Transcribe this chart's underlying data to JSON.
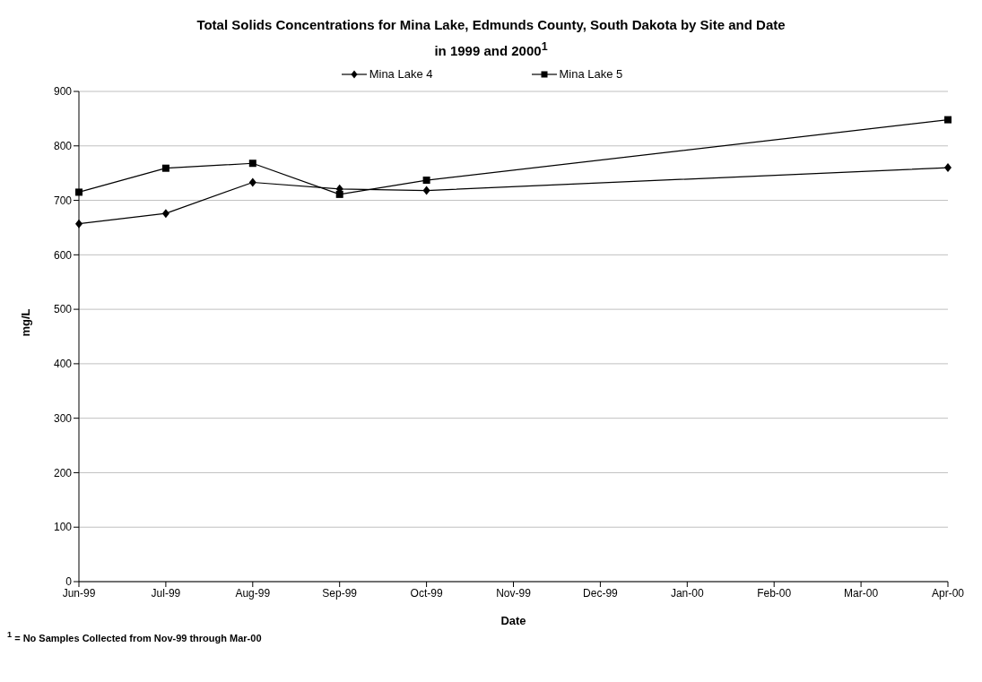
{
  "chart_data": {
    "type": "line",
    "title": "Total Solids Concentrations for Mina Lake, Edmunds County, South Dakota by Site and Date\nin 1999 and 2000$^{1}$",
    "xlabel": "Date",
    "ylabel": "mg/L",
    "categories": [
      "Jun-99",
      "Jul-99",
      "Aug-99",
      "Sep-99",
      "Oct-99",
      "Nov-99",
      "Dec-99",
      "Jan-00",
      "Feb-00",
      "Mar-00",
      "Apr-00"
    ],
    "series": [
      {
        "name": "Mina Lake 4",
        "color": "#000000",
        "marker": "diamond",
        "values": [
          657,
          676,
          733,
          721,
          718,
          null,
          null,
          null,
          null,
          null,
          760
        ]
      },
      {
        "name": "Mina Lake 5",
        "color": "#000000",
        "marker": "square",
        "values": [
          715,
          759,
          768,
          711,
          737,
          null,
          null,
          null,
          null,
          null,
          848
        ]
      }
    ],
    "ylim": [
      0,
      900
    ],
    "yticks": [
      0,
      100,
      200,
      300,
      400,
      500,
      600,
      700,
      800,
      900
    ],
    "grid": "y",
    "legend": "top",
    "line_style": "solid",
    "annotations": [
      "$^{1}$ = No Samples Collected from Nov-99 through Mar-00"
    ]
  }
}
